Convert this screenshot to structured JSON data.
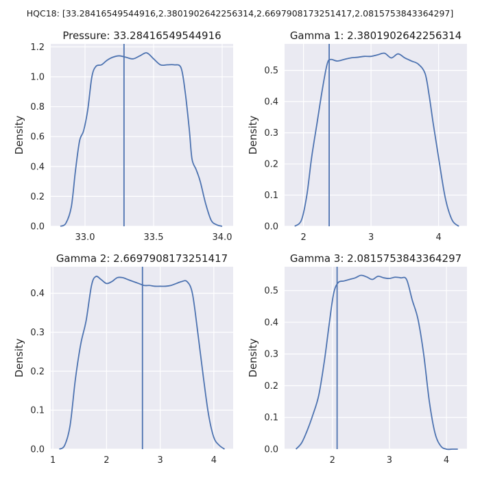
{
  "figure": {
    "suptitle": "HQC18: [33.28416549544916,2.3801902642256314,2.6697908173251417,2.0815753843364297]"
  },
  "colors": {
    "line": "#4c72b0",
    "panel_bg": "#eaeaf2",
    "grid": "#ffffff"
  },
  "chart_data": [
    {
      "type": "line",
      "title": "Pressure: 33.28416549544916",
      "xlabel": "",
      "ylabel": "Density",
      "grid": true,
      "xlim": [
        32.75,
        34.08
      ],
      "ylim": [
        0,
        1.22
      ],
      "xticks": [
        33.0,
        33.5,
        34.0
      ],
      "xtick_labels": [
        "33.0",
        "33.5",
        "34.0"
      ],
      "yticks": [
        0,
        0.2,
        0.4,
        0.6,
        0.8,
        1.0,
        1.2
      ],
      "ytick_labels": [
        "0.0",
        "0.2",
        "0.4",
        "0.6",
        "0.8",
        "1.0",
        "1.2"
      ],
      "vline": 33.28416549544916,
      "x": [
        32.82,
        32.86,
        32.9,
        32.93,
        32.96,
        32.99,
        33.02,
        33.05,
        33.08,
        33.12,
        33.16,
        33.2,
        33.25,
        33.3,
        33.35,
        33.4,
        33.45,
        33.5,
        33.55,
        33.6,
        33.65,
        33.7,
        33.73,
        33.76,
        33.78,
        33.81,
        33.84,
        33.88,
        33.92,
        33.96,
        34.0
      ],
      "y": [
        0.0,
        0.02,
        0.13,
        0.37,
        0.57,
        0.64,
        0.78,
        1.0,
        1.07,
        1.08,
        1.11,
        1.13,
        1.14,
        1.13,
        1.12,
        1.14,
        1.16,
        1.12,
        1.08,
        1.08,
        1.08,
        1.06,
        0.9,
        0.65,
        0.45,
        0.38,
        0.3,
        0.15,
        0.04,
        0.01,
        0.0
      ]
    },
    {
      "type": "line",
      "title": "Gamma 1: 2.3801902642256314",
      "xlabel": "",
      "ylabel": "Density",
      "grid": true,
      "xlim": [
        1.72,
        4.42
      ],
      "ylim": [
        0,
        0.585
      ],
      "xticks": [
        2,
        3,
        4
      ],
      "xtick_labels": [
        "2",
        "3",
        "4"
      ],
      "yticks": [
        0,
        0.1,
        0.2,
        0.3,
        0.4,
        0.5
      ],
      "ytick_labels": [
        "0.0",
        "0.1",
        "0.2",
        "0.3",
        "0.4",
        "0.5"
      ],
      "vline": 2.3801902642256314,
      "x": [
        1.87,
        1.97,
        2.05,
        2.12,
        2.2,
        2.28,
        2.35,
        2.4,
        2.5,
        2.6,
        2.7,
        2.8,
        2.9,
        3.0,
        3.1,
        3.2,
        3.3,
        3.4,
        3.5,
        3.6,
        3.7,
        3.8,
        3.86,
        3.92,
        4.0,
        4.1,
        4.2,
        4.3
      ],
      "y": [
        0.0,
        0.02,
        0.1,
        0.22,
        0.33,
        0.44,
        0.52,
        0.535,
        0.53,
        0.535,
        0.54,
        0.542,
        0.545,
        0.545,
        0.55,
        0.555,
        0.54,
        0.553,
        0.54,
        0.53,
        0.52,
        0.49,
        0.42,
        0.33,
        0.22,
        0.09,
        0.02,
        0.0
      ]
    },
    {
      "type": "line",
      "title": "Gamma 2: 2.6697908173251417",
      "xlabel": "",
      "ylabel": "Density",
      "grid": true,
      "xlim": [
        0.96,
        4.36
      ],
      "ylim": [
        0,
        0.468
      ],
      "xticks": [
        1,
        2,
        3,
        4
      ],
      "xtick_labels": [
        "1",
        "2",
        "3",
        "4"
      ],
      "yticks": [
        0,
        0.1,
        0.2,
        0.3,
        0.4
      ],
      "ytick_labels": [
        "0.0",
        "0.1",
        "0.2",
        "0.3",
        "0.4"
      ],
      "vline": 2.6697908173251417,
      "x": [
        1.12,
        1.22,
        1.32,
        1.42,
        1.52,
        1.62,
        1.72,
        1.8,
        1.9,
        2.0,
        2.1,
        2.2,
        2.3,
        2.4,
        2.5,
        2.6,
        2.7,
        2.8,
        2.9,
        3.0,
        3.1,
        3.2,
        3.3,
        3.4,
        3.5,
        3.6,
        3.7,
        3.8,
        3.9,
        4.0,
        4.1,
        4.2
      ],
      "y": [
        0.0,
        0.01,
        0.06,
        0.18,
        0.27,
        0.33,
        0.42,
        0.443,
        0.435,
        0.425,
        0.43,
        0.44,
        0.44,
        0.435,
        0.43,
        0.425,
        0.42,
        0.42,
        0.418,
        0.418,
        0.418,
        0.42,
        0.425,
        0.43,
        0.43,
        0.4,
        0.3,
        0.19,
        0.09,
        0.03,
        0.01,
        0.0
      ]
    },
    {
      "type": "line",
      "title": "Gamma 3: 2.0815753843364297",
      "xlabel": "",
      "ylabel": "Density",
      "grid": true,
      "xlim": [
        1.16,
        4.36
      ],
      "ylim": [
        0,
        0.575
      ],
      "xticks": [
        2,
        3,
        4
      ],
      "xtick_labels": [
        "2",
        "3",
        "4"
      ],
      "yticks": [
        0,
        0.1,
        0.2,
        0.3,
        0.4,
        0.5
      ],
      "ytick_labels": [
        "0.0",
        "0.1",
        "0.2",
        "0.3",
        "0.4",
        "0.5"
      ],
      "vline": 2.0815753843364297,
      "x": [
        1.36,
        1.46,
        1.56,
        1.66,
        1.76,
        1.86,
        1.94,
        2.02,
        2.1,
        2.2,
        2.3,
        2.4,
        2.5,
        2.6,
        2.7,
        2.8,
        2.9,
        3.0,
        3.1,
        3.2,
        3.3,
        3.4,
        3.5,
        3.6,
        3.7,
        3.8,
        3.9,
        4.0,
        4.1,
        4.2
      ],
      "y": [
        0.0,
        0.02,
        0.06,
        0.11,
        0.17,
        0.28,
        0.39,
        0.49,
        0.525,
        0.53,
        0.535,
        0.54,
        0.548,
        0.543,
        0.535,
        0.545,
        0.54,
        0.538,
        0.542,
        0.54,
        0.535,
        0.47,
        0.41,
        0.3,
        0.15,
        0.05,
        0.01,
        0.0,
        0.0,
        0.0
      ]
    }
  ]
}
